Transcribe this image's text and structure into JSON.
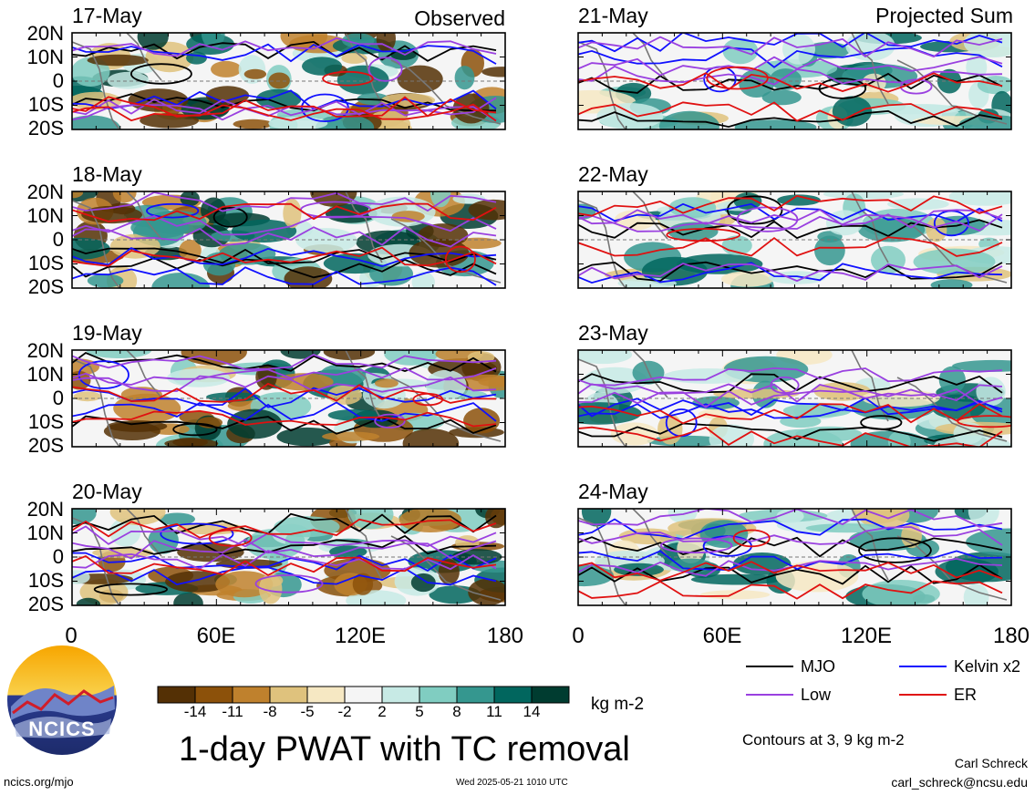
{
  "chart_data": {
    "type": "heatmap",
    "title": "1-day PWAT with TC removal",
    "units": "kg m-2",
    "columns": [
      {
        "label": "Observed",
        "dates": [
          "17-May",
          "18-May",
          "19-May",
          "20-May"
        ]
      },
      {
        "label": "Projected Sum",
        "dates": [
          "21-May",
          "22-May",
          "23-May",
          "24-May"
        ]
      }
    ],
    "lat_ticks": [
      "20N",
      "10N",
      "0",
      "10S",
      "20S"
    ],
    "lon_ticks": [
      "0",
      "60E",
      "120E",
      "180"
    ],
    "colorbar": {
      "labels": [
        "-14",
        "-11",
        "-8",
        "-5",
        "-2",
        "2",
        "5",
        "8",
        "11",
        "14"
      ],
      "colors": [
        "#543005",
        "#8c510a",
        "#bf812d",
        "#dfc27d",
        "#f6e8c3",
        "#f5f5f5",
        "#c7eae5",
        "#80cdc1",
        "#35978f",
        "#01665e",
        "#003c30"
      ]
    },
    "legend": [
      {
        "name": "MJO",
        "color": "#000000"
      },
      {
        "name": "Kelvin x2",
        "color": "#1010ff"
      },
      {
        "name": "Low",
        "color": "#9a40e0"
      },
      {
        "name": "ER",
        "color": "#e01010"
      }
    ],
    "contour_note": "Contours at 3, 9 kg m-2"
  },
  "footer": {
    "author": "Carl Schreck",
    "email": "carl_schreck@ncsu.edu",
    "site": "ncics.org/mjo",
    "timestamp": "Wed 2025-05-21 1010 UTC",
    "logo_text": "NCICS"
  }
}
